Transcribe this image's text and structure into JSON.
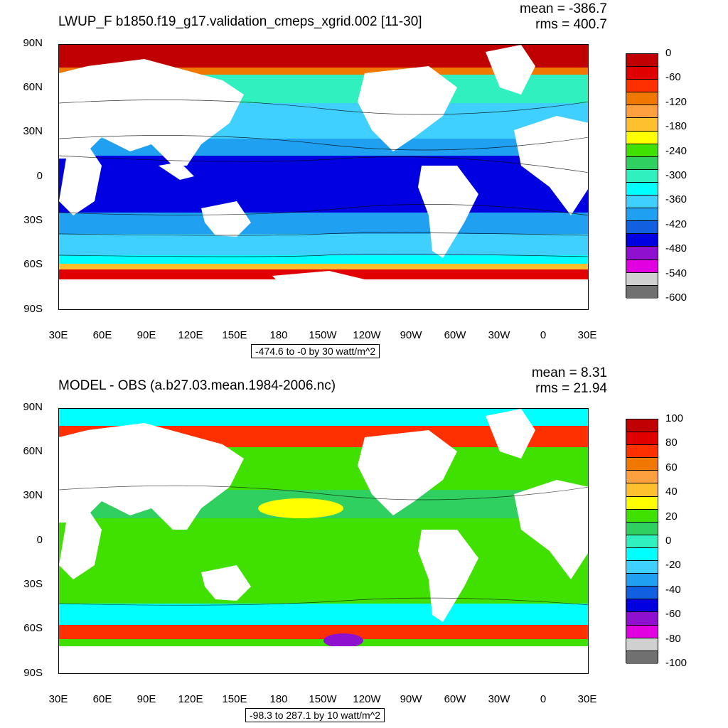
{
  "panels": [
    {
      "title": "LWUP_F b1850.f19_g17.validation_cmeps_xgrid.002 [11-30]",
      "mean": "mean = -386.7",
      "rms": "rms = 400.7",
      "range": "-474.6 to -0 by 30 watt/m^2",
      "colorbar": {
        "labels": [
          "0",
          "-60",
          "-120",
          "-180",
          "-240",
          "-300",
          "-360",
          "-420",
          "-480",
          "-540",
          "-600"
        ],
        "colors": [
          "#c00000",
          "#e00000",
          "#ff3000",
          "#f07800",
          "#ffa040",
          "#ffc030",
          "#ffff00",
          "#40e000",
          "#30d060",
          "#30f0c0",
          "#00ffff",
          "#40d0ff",
          "#20a0f0",
          "#1060e0",
          "#0000e0",
          "#9010d0",
          "#e000e0",
          "#d0d0d0",
          "#707070"
        ]
      }
    },
    {
      "title": "MODEL - OBS (a.b27.03.mean.1984-2006.nc)",
      "mean": "mean = 8.31",
      "rms": "rms = 21.94",
      "range": "-98.3 to 287.1 by 10 watt/m^2",
      "colorbar": {
        "labels": [
          "100",
          "80",
          "60",
          "40",
          "20",
          "0",
          "-20",
          "-40",
          "-60",
          "-80",
          "-100"
        ],
        "colors": [
          "#c00000",
          "#e00000",
          "#ff3000",
          "#f07800",
          "#ffa040",
          "#ffc030",
          "#ffff00",
          "#40e000",
          "#30d060",
          "#30f0c0",
          "#00ffff",
          "#40d0ff",
          "#20a0f0",
          "#1060e0",
          "#0000e0",
          "#9010d0",
          "#e000e0",
          "#d0d0d0",
          "#707070"
        ]
      }
    }
  ],
  "axes": {
    "lat_labels": [
      "90N",
      "60N",
      "30N",
      "0",
      "30S",
      "60S",
      "90S"
    ],
    "lon_labels": [
      "30E",
      "60E",
      "90E",
      "120E",
      "150E",
      "180",
      "150W",
      "120W",
      "90W",
      "60W",
      "30W",
      "0",
      "30E"
    ]
  }
}
